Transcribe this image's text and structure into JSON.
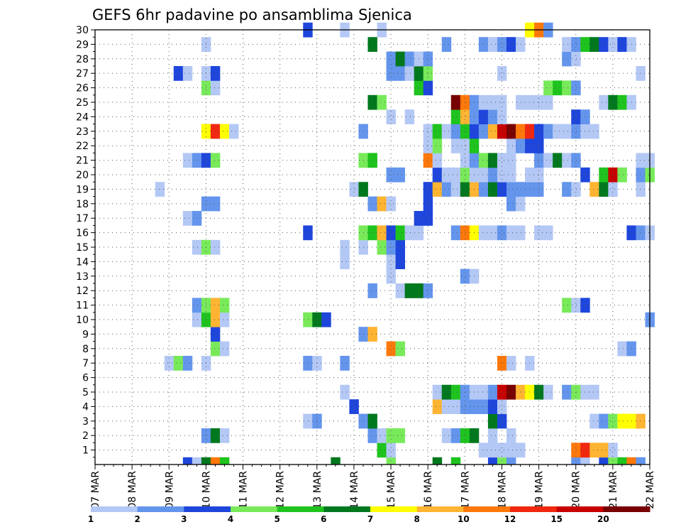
{
  "chart_data": {
    "type": "heatmap",
    "title": "GEFS 6hr padavine po ansamblima Sjenica",
    "xlabel": "",
    "ylabel": "",
    "x_tick_labels": [
      "07 MAR",
      "08 MAR",
      "09 MAR",
      "10 MAR",
      "11 MAR",
      "12 MAR",
      "13 MAR",
      "14 MAR",
      "15 MAR",
      "16 MAR",
      "17 MAR",
      "18 MAR",
      "19 MAR",
      "20 MAR",
      "21 MAR",
      "22 MAR"
    ],
    "y_tick_labels": [
      "1",
      "2",
      "3",
      "4",
      "5",
      "6",
      "7",
      "8",
      "9",
      "10",
      "11",
      "12",
      "13",
      "14",
      "15",
      "16",
      "17",
      "18",
      "19",
      "20",
      "21",
      "22",
      "23",
      "24",
      "25",
      "26",
      "27",
      "28",
      "29",
      "30"
    ],
    "y_range": [
      0,
      30
    ],
    "time_steps": 60,
    "grid": "dotted",
    "colorbar": {
      "levels": [
        "1",
        "2",
        "3",
        "4",
        "5",
        "6",
        "7",
        "8",
        "10",
        "12",
        "15",
        "20"
      ],
      "colors": [
        "#b4c8f5",
        "#6495ed",
        "#1e46dc",
        "#78ea5a",
        "#1ec31e",
        "#00781e",
        "#ffff00",
        "#ffb432",
        "#ff780a",
        "#f0280f",
        "#c80000",
        "#780000"
      ]
    },
    "cells": [
      [
        0,
        10,
        3
      ],
      [
        0,
        11,
        1
      ],
      [
        0,
        12,
        6
      ],
      [
        0,
        13,
        9
      ],
      [
        0,
        14,
        5
      ],
      [
        0,
        26,
        6
      ],
      [
        0,
        32,
        4
      ],
      [
        0,
        37,
        6
      ],
      [
        0,
        39,
        5
      ],
      [
        0,
        43,
        3
      ],
      [
        0,
        44,
        4
      ],
      [
        0,
        45,
        2
      ],
      [
        0,
        52,
        2
      ],
      [
        0,
        53,
        1
      ],
      [
        0,
        55,
        3
      ],
      [
        0,
        56,
        4
      ],
      [
        0,
        57,
        5
      ],
      [
        0,
        58,
        9
      ],
      [
        0,
        59,
        2
      ],
      [
        1,
        31,
        5
      ],
      [
        1,
        32,
        1
      ],
      [
        1,
        42,
        1
      ],
      [
        1,
        43,
        1
      ],
      [
        1,
        44,
        1
      ],
      [
        1,
        45,
        1
      ],
      [
        1,
        46,
        1
      ],
      [
        1,
        52,
        9
      ],
      [
        1,
        53,
        10
      ],
      [
        1,
        54,
        8
      ],
      [
        1,
        55,
        8
      ],
      [
        1,
        56,
        1
      ],
      [
        2,
        12,
        2
      ],
      [
        2,
        13,
        6
      ],
      [
        2,
        14,
        1
      ],
      [
        2,
        30,
        2
      ],
      [
        2,
        31,
        1
      ],
      [
        2,
        32,
        4
      ],
      [
        2,
        33,
        4
      ],
      [
        2,
        38,
        1
      ],
      [
        2,
        39,
        2
      ],
      [
        2,
        40,
        5
      ],
      [
        2,
        41,
        6
      ],
      [
        2,
        43,
        1
      ],
      [
        2,
        45,
        1
      ],
      [
        3,
        23,
        1
      ],
      [
        3,
        24,
        2
      ],
      [
        3,
        29,
        2
      ],
      [
        3,
        30,
        6
      ],
      [
        3,
        43,
        6
      ],
      [
        3,
        44,
        3
      ],
      [
        3,
        54,
        1
      ],
      [
        3,
        55,
        2
      ],
      [
        3,
        56,
        4
      ],
      [
        3,
        57,
        7
      ],
      [
        3,
        58,
        7
      ],
      [
        3,
        59,
        8
      ],
      [
        4,
        28,
        3
      ],
      [
        4,
        37,
        8
      ],
      [
        4,
        38,
        1
      ],
      [
        4,
        39,
        1
      ],
      [
        4,
        40,
        2
      ],
      [
        4,
        41,
        2
      ],
      [
        4,
        42,
        2
      ],
      [
        4,
        43,
        3
      ],
      [
        4,
        44,
        1
      ],
      [
        5,
        27,
        1
      ],
      [
        5,
        37,
        1
      ],
      [
        5,
        38,
        6
      ],
      [
        5,
        39,
        5
      ],
      [
        5,
        40,
        2
      ],
      [
        5,
        41,
        1
      ],
      [
        5,
        42,
        1
      ],
      [
        5,
        43,
        2
      ],
      [
        5,
        44,
        11
      ],
      [
        5,
        45,
        12
      ],
      [
        5,
        46,
        8
      ],
      [
        5,
        47,
        7
      ],
      [
        5,
        48,
        6
      ],
      [
        5,
        49,
        1
      ],
      [
        5,
        51,
        2
      ],
      [
        5,
        52,
        4
      ],
      [
        5,
        53,
        1
      ],
      [
        5,
        54,
        1
      ],
      [
        7,
        8,
        1
      ],
      [
        7,
        9,
        4
      ],
      [
        7,
        10,
        2
      ],
      [
        7,
        12,
        1
      ],
      [
        7,
        23,
        2
      ],
      [
        7,
        24,
        1
      ],
      [
        7,
        27,
        2
      ],
      [
        7,
        44,
        9
      ],
      [
        7,
        45,
        1
      ],
      [
        7,
        47,
        1
      ],
      [
        8,
        13,
        4
      ],
      [
        8,
        14,
        1
      ],
      [
        8,
        32,
        9
      ],
      [
        8,
        33,
        4
      ],
      [
        8,
        57,
        1
      ],
      [
        8,
        58,
        2
      ],
      [
        9,
        13,
        3
      ],
      [
        9,
        29,
        2
      ],
      [
        9,
        30,
        8
      ],
      [
        10,
        11,
        1
      ],
      [
        10,
        12,
        5
      ],
      [
        10,
        13,
        8
      ],
      [
        10,
        14,
        1
      ],
      [
        10,
        23,
        4
      ],
      [
        10,
        24,
        6
      ],
      [
        10,
        25,
        3
      ],
      [
        10,
        60,
        2
      ],
      [
        11,
        11,
        2
      ],
      [
        11,
        12,
        4
      ],
      [
        11,
        13,
        8
      ],
      [
        11,
        14,
        4
      ],
      [
        11,
        51,
        4
      ],
      [
        11,
        52,
        1
      ],
      [
        11,
        53,
        3
      ],
      [
        12,
        30,
        2
      ],
      [
        12,
        33,
        1
      ],
      [
        12,
        34,
        6
      ],
      [
        12,
        35,
        6
      ],
      [
        12,
        36,
        2
      ],
      [
        13,
        32,
        1
      ],
      [
        13,
        40,
        2
      ],
      [
        13,
        41,
        1
      ],
      [
        14,
        27,
        1
      ],
      [
        14,
        32,
        1
      ],
      [
        14,
        33,
        3
      ],
      [
        15,
        11,
        1
      ],
      [
        15,
        12,
        4
      ],
      [
        15,
        13,
        1
      ],
      [
        15,
        27,
        1
      ],
      [
        15,
        29,
        1
      ],
      [
        15,
        31,
        4
      ],
      [
        15,
        32,
        2
      ],
      [
        15,
        33,
        3
      ],
      [
        16,
        23,
        3
      ],
      [
        16,
        29,
        4
      ],
      [
        16,
        30,
        5
      ],
      [
        16,
        31,
        8
      ],
      [
        16,
        32,
        3
      ],
      [
        16,
        33,
        5
      ],
      [
        16,
        34,
        1
      ],
      [
        16,
        35,
        1
      ],
      [
        16,
        39,
        2
      ],
      [
        16,
        40,
        9
      ],
      [
        16,
        41,
        7
      ],
      [
        16,
        42,
        1
      ],
      [
        16,
        43,
        1
      ],
      [
        16,
        44,
        2
      ],
      [
        16,
        45,
        1
      ],
      [
        16,
        46,
        1
      ],
      [
        16,
        48,
        1
      ],
      [
        16,
        49,
        1
      ],
      [
        16,
        58,
        3
      ],
      [
        16,
        59,
        2
      ],
      [
        16,
        60,
        1
      ],
      [
        17,
        10,
        1
      ],
      [
        17,
        11,
        2
      ],
      [
        17,
        35,
        3
      ],
      [
        17,
        36,
        3
      ],
      [
        18,
        12,
        2
      ],
      [
        18,
        13,
        2
      ],
      [
        18,
        30,
        2
      ],
      [
        18,
        31,
        8
      ],
      [
        18,
        32,
        1
      ],
      [
        18,
        36,
        3
      ],
      [
        18,
        45,
        2
      ],
      [
        18,
        46,
        1
      ],
      [
        19,
        7,
        1
      ],
      [
        19,
        28,
        1
      ],
      [
        19,
        29,
        6
      ],
      [
        19,
        36,
        3
      ],
      [
        19,
        37,
        8
      ],
      [
        19,
        38,
        2
      ],
      [
        19,
        39,
        1
      ],
      [
        19,
        40,
        6
      ],
      [
        19,
        41,
        8
      ],
      [
        19,
        42,
        2
      ],
      [
        19,
        43,
        6
      ],
      [
        19,
        44,
        3
      ],
      [
        19,
        45,
        2
      ],
      [
        19,
        46,
        2
      ],
      [
        19,
        47,
        2
      ],
      [
        19,
        48,
        2
      ],
      [
        19,
        51,
        2
      ],
      [
        19,
        52,
        1
      ],
      [
        19,
        54,
        8
      ],
      [
        19,
        55,
        6
      ],
      [
        19,
        56,
        1
      ],
      [
        19,
        59,
        1
      ],
      [
        20,
        32,
        2
      ],
      [
        20,
        33,
        2
      ],
      [
        20,
        37,
        3
      ],
      [
        20,
        38,
        1
      ],
      [
        20,
        39,
        1
      ],
      [
        20,
        40,
        4
      ],
      [
        20,
        41,
        1
      ],
      [
        20,
        42,
        1
      ],
      [
        20,
        43,
        2
      ],
      [
        20,
        44,
        1
      ],
      [
        20,
        45,
        1
      ],
      [
        20,
        47,
        1
      ],
      [
        20,
        48,
        1
      ],
      [
        20,
        53,
        3
      ],
      [
        20,
        55,
        5
      ],
      [
        20,
        56,
        11
      ],
      [
        20,
        57,
        4
      ],
      [
        20,
        59,
        2
      ],
      [
        20,
        60,
        4
      ],
      [
        21,
        10,
        1
      ],
      [
        21,
        11,
        2
      ],
      [
        21,
        12,
        3
      ],
      [
        21,
        13,
        4
      ],
      [
        21,
        29,
        4
      ],
      [
        21,
        30,
        5
      ],
      [
        21,
        36,
        9
      ],
      [
        21,
        37,
        1
      ],
      [
        21,
        40,
        1
      ],
      [
        21,
        41,
        2
      ],
      [
        21,
        42,
        4
      ],
      [
        21,
        43,
        6
      ],
      [
        21,
        44,
        1
      ],
      [
        21,
        45,
        1
      ],
      [
        21,
        48,
        2
      ],
      [
        21,
        49,
        1
      ],
      [
        21,
        50,
        6
      ],
      [
        21,
        51,
        1
      ],
      [
        21,
        52,
        2
      ],
      [
        21,
        59,
        1
      ],
      [
        21,
        60,
        1
      ],
      [
        22,
        36,
        1
      ],
      [
        22,
        37,
        4
      ],
      [
        22,
        39,
        1
      ],
      [
        22,
        40,
        1
      ],
      [
        22,
        41,
        5
      ],
      [
        22,
        45,
        1
      ],
      [
        22,
        46,
        2
      ],
      [
        22,
        47,
        3
      ],
      [
        22,
        48,
        3
      ],
      [
        23,
        12,
        7
      ],
      [
        23,
        13,
        10
      ],
      [
        23,
        14,
        7
      ],
      [
        23,
        15,
        1
      ],
      [
        23,
        29,
        2
      ],
      [
        23,
        36,
        1
      ],
      [
        23,
        37,
        5
      ],
      [
        23,
        38,
        1
      ],
      [
        23,
        39,
        2
      ],
      [
        23,
        40,
        5
      ],
      [
        23,
        41,
        3
      ],
      [
        23,
        42,
        2
      ],
      [
        23,
        43,
        8
      ],
      [
        23,
        44,
        11
      ],
      [
        23,
        45,
        12
      ],
      [
        23,
        46,
        9
      ],
      [
        23,
        47,
        10
      ],
      [
        23,
        48,
        3
      ],
      [
        23,
        49,
        2
      ],
      [
        23,
        50,
        1
      ],
      [
        23,
        51,
        1
      ],
      [
        23,
        52,
        2
      ],
      [
        23,
        53,
        1
      ],
      [
        23,
        54,
        1
      ],
      [
        24,
        32,
        1
      ],
      [
        24,
        34,
        1
      ],
      [
        24,
        39,
        5
      ],
      [
        24,
        40,
        8
      ],
      [
        24,
        41,
        2
      ],
      [
        24,
        42,
        3
      ],
      [
        24,
        43,
        2
      ],
      [
        24,
        44,
        1
      ],
      [
        24,
        52,
        3
      ],
      [
        24,
        53,
        2
      ],
      [
        25,
        30,
        6
      ],
      [
        25,
        31,
        4
      ],
      [
        25,
        39,
        12
      ],
      [
        25,
        40,
        9
      ],
      [
        25,
        41,
        2
      ],
      [
        25,
        42,
        1
      ],
      [
        25,
        43,
        1
      ],
      [
        25,
        44,
        1
      ],
      [
        25,
        46,
        1
      ],
      [
        25,
        47,
        1
      ],
      [
        25,
        48,
        1
      ],
      [
        25,
        49,
        1
      ],
      [
        25,
        55,
        1
      ],
      [
        25,
        56,
        6
      ],
      [
        25,
        57,
        5
      ],
      [
        25,
        58,
        1
      ],
      [
        26,
        12,
        4
      ],
      [
        26,
        13,
        1
      ],
      [
        26,
        35,
        5
      ],
      [
        26,
        36,
        3
      ],
      [
        26,
        49,
        4
      ],
      [
        26,
        50,
        5
      ],
      [
        26,
        51,
        4
      ],
      [
        26,
        52,
        2
      ],
      [
        27,
        9,
        3
      ],
      [
        27,
        10,
        1
      ],
      [
        27,
        12,
        1
      ],
      [
        27,
        13,
        3
      ],
      [
        27,
        32,
        2
      ],
      [
        27,
        33,
        2
      ],
      [
        27,
        34,
        1
      ],
      [
        27,
        35,
        6
      ],
      [
        27,
        36,
        4
      ],
      [
        27,
        44,
        1
      ],
      [
        27,
        59,
        1
      ],
      [
        28,
        32,
        2
      ],
      [
        28,
        33,
        6
      ],
      [
        28,
        34,
        2
      ],
      [
        28,
        35,
        1
      ],
      [
        28,
        36,
        2
      ],
      [
        28,
        51,
        2
      ],
      [
        28,
        52,
        1
      ],
      [
        29,
        12,
        1
      ],
      [
        29,
        30,
        6
      ],
      [
        29,
        38,
        2
      ],
      [
        29,
        42,
        2
      ],
      [
        29,
        43,
        1
      ],
      [
        29,
        44,
        2
      ],
      [
        29,
        45,
        3
      ],
      [
        29,
        46,
        1
      ],
      [
        29,
        51,
        1
      ],
      [
        29,
        52,
        2
      ],
      [
        29,
        53,
        5
      ],
      [
        29,
        54,
        6
      ],
      [
        29,
        55,
        3
      ],
      [
        29,
        56,
        1
      ],
      [
        29,
        57,
        3
      ],
      [
        29,
        58,
        1
      ],
      [
        30,
        23,
        3
      ],
      [
        30,
        27,
        1
      ],
      [
        30,
        31,
        1
      ],
      [
        30,
        47,
        7
      ],
      [
        30,
        48,
        9
      ],
      [
        30,
        49,
        2
      ]
    ]
  }
}
